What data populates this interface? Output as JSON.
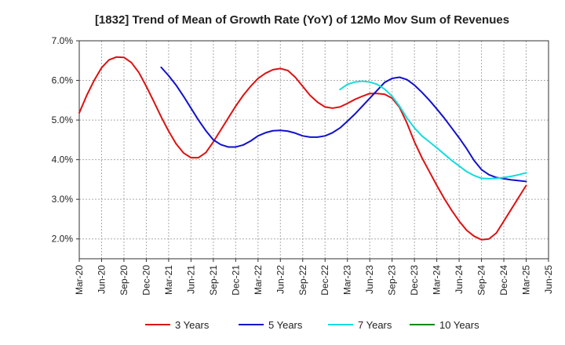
{
  "chart_data": {
    "type": "line",
    "title": "[1832]  Trend of Mean of Growth Rate (YoY) of 12Mo Mov Sum of Revenues",
    "xlabel": "",
    "ylabel": "",
    "ylim": [
      1.5,
      7.0
    ],
    "y_ticks": [
      2.0,
      3.0,
      4.0,
      5.0,
      6.0,
      7.0
    ],
    "y_tick_labels": [
      "2.0%",
      "3.0%",
      "4.0%",
      "5.0%",
      "6.0%",
      "7.0%"
    ],
    "x_tick_labels": [
      "Mar-20",
      "Jun-20",
      "Sep-20",
      "Dec-20",
      "Mar-21",
      "Jun-21",
      "Sep-21",
      "Dec-21",
      "Mar-22",
      "Jun-22",
      "Sep-22",
      "Dec-22",
      "Mar-23",
      "Jun-23",
      "Sep-23",
      "Dec-23",
      "Mar-24",
      "Jun-24",
      "Sep-24",
      "Dec-24",
      "Mar-25",
      "Jun-25"
    ],
    "x_unit": "months since Mar-20",
    "series": [
      {
        "name": "3 Years",
        "color": "#dd1111",
        "x": [
          0,
          1,
          2,
          3,
          4,
          5,
          6,
          7,
          8,
          9,
          10,
          11,
          12,
          13,
          14,
          15,
          16,
          17,
          18,
          19,
          20,
          21,
          22,
          23,
          24,
          25,
          26,
          27,
          28,
          29,
          30,
          31,
          32,
          33,
          34,
          35,
          36,
          37,
          38,
          39,
          40,
          41,
          42,
          43,
          44,
          45,
          46,
          47,
          48,
          49,
          50,
          51,
          52,
          53,
          54,
          55,
          56,
          57,
          58,
          59,
          60
        ],
        "values": [
          5.18,
          5.62,
          6.0,
          6.32,
          6.52,
          6.59,
          6.58,
          6.45,
          6.2,
          5.85,
          5.47,
          5.08,
          4.72,
          4.4,
          4.17,
          4.05,
          4.05,
          4.18,
          4.45,
          4.75,
          5.05,
          5.35,
          5.62,
          5.85,
          6.05,
          6.18,
          6.27,
          6.3,
          6.25,
          6.08,
          5.85,
          5.62,
          5.45,
          5.33,
          5.3,
          5.33,
          5.42,
          5.52,
          5.6,
          5.67,
          5.67,
          5.65,
          5.55,
          5.32,
          4.92,
          4.45,
          4.05,
          3.7,
          3.35,
          3.02,
          2.72,
          2.45,
          2.22,
          2.07,
          1.98,
          2.0,
          2.15,
          2.45,
          2.75,
          3.05,
          3.35
        ]
      },
      {
        "name": "5 Years",
        "color": "#1111cc",
        "x": [
          11,
          12,
          13,
          14,
          15,
          16,
          17,
          18,
          19,
          20,
          21,
          22,
          23,
          24,
          25,
          26,
          27,
          28,
          29,
          30,
          31,
          32,
          33,
          34,
          35,
          36,
          37,
          38,
          39,
          40,
          41,
          42,
          43,
          44,
          45,
          46,
          47,
          48,
          49,
          50,
          51,
          52,
          53,
          54,
          55,
          56,
          57,
          58,
          59,
          60
        ],
        "values": [
          6.33,
          6.12,
          5.88,
          5.6,
          5.3,
          5.0,
          4.73,
          4.5,
          4.38,
          4.32,
          4.32,
          4.37,
          4.47,
          4.6,
          4.68,
          4.73,
          4.74,
          4.72,
          4.67,
          4.6,
          4.57,
          4.57,
          4.6,
          4.68,
          4.8,
          4.97,
          5.15,
          5.35,
          5.55,
          5.75,
          5.95,
          6.05,
          6.08,
          6.02,
          5.88,
          5.7,
          5.5,
          5.28,
          5.05,
          4.8,
          4.55,
          4.28,
          3.98,
          3.75,
          3.62,
          3.55,
          3.52,
          3.49,
          3.47,
          3.45
        ]
      },
      {
        "name": "7 Years",
        "color": "#11dddd",
        "x": [
          35,
          36,
          37,
          38,
          39,
          40,
          41,
          42,
          43,
          44,
          45,
          46,
          47,
          48,
          49,
          50,
          51,
          52,
          53,
          54,
          55,
          56,
          57,
          58,
          59,
          60
        ],
        "values": [
          5.77,
          5.9,
          5.96,
          5.98,
          5.96,
          5.9,
          5.78,
          5.6,
          5.35,
          5.05,
          4.8,
          4.6,
          4.45,
          4.3,
          4.14,
          3.98,
          3.84,
          3.7,
          3.6,
          3.53,
          3.52,
          3.53,
          3.55,
          3.58,
          3.62,
          3.67
        ]
      },
      {
        "name": "10 Years",
        "color": "#118811",
        "x": [],
        "values": []
      }
    ],
    "legend": [
      "3 Years",
      "5 Years",
      "7 Years",
      "10 Years"
    ],
    "legend_position": "bottom",
    "grid": true
  }
}
